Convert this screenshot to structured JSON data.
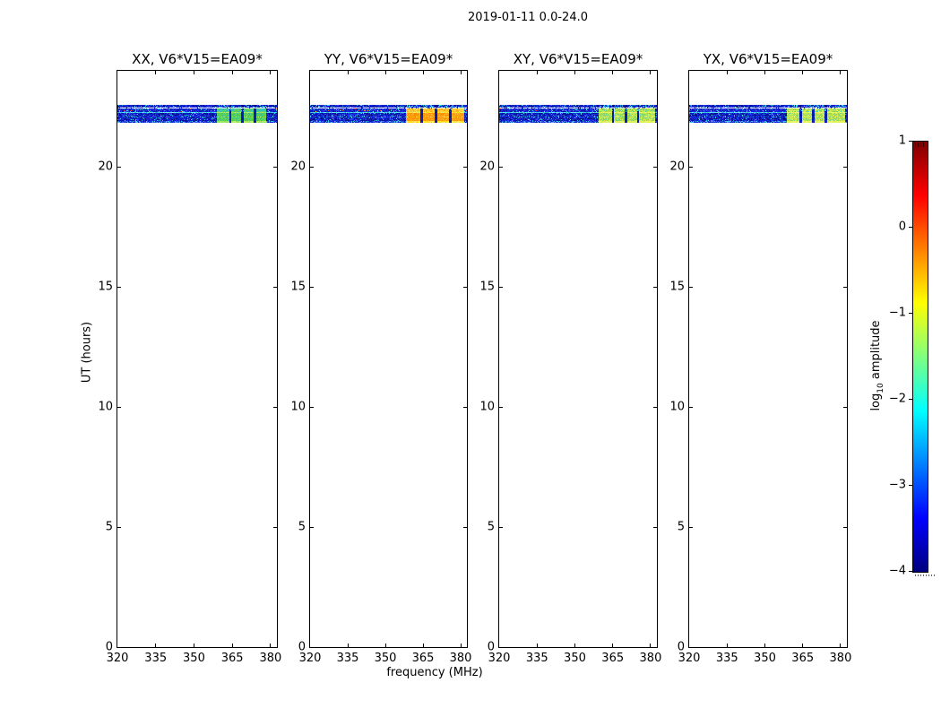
{
  "figure": {
    "title": "2019-01-11 0.0-24.0",
    "xlabel": "frequency (MHz)",
    "ylabel": "UT (hours)",
    "background": "#ffffff"
  },
  "axes": {
    "x_tick_labels": [
      "320",
      "335",
      "350",
      "365",
      "380"
    ],
    "y_tick_labels": [
      "0",
      "5",
      "10",
      "15",
      "20"
    ]
  },
  "colorbar": {
    "label_log": "log",
    "label_sub": "10",
    "label_rest": " amplitude",
    "ticks": [
      "1",
      "0",
      "−1",
      "−2",
      "−3",
      "−4"
    ],
    "tick_values": [
      1,
      0,
      -1,
      -2,
      -3,
      -4
    ],
    "gradient_top_to_bottom": [
      "#7f0000",
      "#ff0000",
      "#ffff00",
      "#00ffff",
      "#0000ff",
      "#00007f"
    ],
    "gradient_stops_pct": [
      0,
      12.5,
      37.5,
      62.5,
      87.5,
      100
    ]
  },
  "band_style": {
    "blue_palette": [
      "#0a18c4",
      "#1628da",
      "#2134e4",
      "#0b1cb0",
      "#3648ea",
      "#0d26d8",
      "#1b32e6",
      "#0914a8"
    ],
    "navy": "#031086",
    "cyan_fleck": [
      "#22c4e6",
      "#3adcf2",
      "#14a4dc",
      "#55e4f4"
    ],
    "warm_outliers": [
      "#e63226",
      "#ff8c00",
      "#ffd700",
      "#cc1616",
      "#ff5512"
    ],
    "bright_line": [
      "#36cbe8",
      "#54dff2",
      "#28b2dc",
      "#6ae8f6"
    ],
    "bottom_line": [
      "#2e6ae6",
      "#38cde8",
      "#2546de",
      "#49b8e8"
    ],
    "sep_palette": [
      "#001896",
      "#002ab4",
      "#0b1cc8"
    ]
  },
  "panels": [
    {
      "title": "XX, V6*V15=EA09*",
      "band": {
        "start": 0.625,
        "end": 0.935,
        "separators": [
          [
            0.7,
            0.716
          ],
          [
            0.776,
            0.792
          ],
          [
            0.852,
            0.868
          ]
        ],
        "top_palette": [
          "#38c4b0",
          "#49d08a",
          "#55cc66",
          "#2fb8d0",
          "#66d455"
        ],
        "block_palette": [
          "#4cc94e",
          "#5fd648",
          "#45c47c",
          "#72da4c",
          "#39bfa2",
          "#57cf60"
        ],
        "edge_palette": [
          "#a2e85c",
          "#8ce060",
          "#b9ee66"
        ]
      }
    },
    {
      "title": "YY, V6*V15=EA09*",
      "band": {
        "start": 0.612,
        "end": 0.984,
        "separators": [
          [
            0.705,
            0.72
          ],
          [
            0.795,
            0.81
          ],
          [
            0.885,
            0.9
          ]
        ],
        "top_palette": [
          "#ffd23a",
          "#ffc224",
          "#ffaa14",
          "#f4e04a"
        ],
        "block_palette": [
          "#ffa012",
          "#fb9208",
          "#ff8c00",
          "#ffb02a",
          "#f8a518"
        ],
        "edge_palette": [
          "#ffe34a",
          "#ffd900",
          "#f8ee66"
        ]
      }
    },
    {
      "title": "XY, V6*V15=EA09*",
      "band": {
        "start": 0.633,
        "end": 0.988,
        "separators": [
          [
            0.715,
            0.73
          ],
          [
            0.795,
            0.81
          ],
          [
            0.873,
            0.888
          ]
        ],
        "top_palette": [
          "#b8e84a",
          "#92dd52",
          "#cdee55",
          "#5ecf9e"
        ],
        "block_palette": [
          "#aade42",
          "#c3e74c",
          "#8cd65a",
          "#d6ee58",
          "#79d48a"
        ],
        "edge_palette": [
          "#e9f46a",
          "#dced50"
        ]
      }
    },
    {
      "title": "YX, V6*V15=EA09*",
      "band": {
        "start": 0.62,
        "end": 0.988,
        "separators": [
          [
            0.7,
            0.715
          ],
          [
            0.778,
            0.793
          ],
          [
            0.858,
            0.873
          ]
        ],
        "top_palette": [
          "#c4ea4c",
          "#9ade50",
          "#d8f058",
          "#62d0a2"
        ],
        "block_palette": [
          "#b2e046",
          "#cdeb50",
          "#90d85c",
          "#dff05e",
          "#7ed48e"
        ],
        "edge_palette": [
          "#ecf66c",
          "#e0ee54"
        ]
      }
    }
  ],
  "chart_data": {
    "type": "heatmap",
    "title": "2019-01-11 0.0-24.0",
    "xlabel": "frequency (MHz)",
    "ylabel": "UT (hours)",
    "xlim": [
      320,
      382.5
    ],
    "ylim": [
      0,
      24
    ],
    "x_ticks": [
      320,
      335,
      350,
      365,
      380
    ],
    "y_ticks": [
      0,
      5,
      10,
      15,
      20
    ],
    "grid": false,
    "colormap": "jet",
    "color_range_log10": [
      -4,
      1
    ],
    "colorbar_label": "log10 amplitude",
    "colorbar_ticks": [
      1,
      0,
      -1,
      -2,
      -3,
      -4
    ],
    "panels": [
      {
        "title": "XX, V6*V15=EA09*",
        "background": "no data (white) for UT 0-21.8 and 22.6-24",
        "features": [
          {
            "kind": "noise band",
            "ut_range": [
              21.8,
              22.6
            ],
            "freq_range_mhz": [
              320,
              382.5
            ],
            "log10_amplitude": [
              -4.0,
              -2.5
            ],
            "appearance": "dark blue speckle, thin cyan lines, sparse red/orange outlier pixels"
          },
          {
            "kind": "enhanced blocks",
            "ut_range": [
              21.9,
              22.45
            ],
            "freq_range_mhz": [
              359,
              378.5
            ],
            "log10_amplitude": [
              -2.0,
              -1.2
            ],
            "appearance": "green blocks separated by dark blue gaps"
          }
        ]
      },
      {
        "title": "YY, V6*V15=EA09*",
        "background": "no data (white) for UT 0-21.8 and 22.6-24",
        "features": [
          {
            "kind": "noise band",
            "ut_range": [
              21.8,
              22.6
            ],
            "freq_range_mhz": [
              320,
              382.5
            ],
            "log10_amplitude": [
              -4.0,
              -2.5
            ],
            "appearance": "dark blue speckle with thin cyan lines"
          },
          {
            "kind": "enhanced blocks",
            "ut_range": [
              21.9,
              22.45
            ],
            "freq_range_mhz": [
              358,
              381.5
            ],
            "log10_amplitude": [
              -0.9,
              -0.2
            ],
            "appearance": "orange blocks with yellow edges separated by dark blue gaps"
          }
        ]
      },
      {
        "title": "XY, V6*V15=EA09*",
        "background": "no data (white) for UT 0-21.8 and 22.6-24",
        "features": [
          {
            "kind": "noise band",
            "ut_range": [
              21.8,
              22.6
            ],
            "freq_range_mhz": [
              320,
              382.5
            ],
            "log10_amplitude": [
              -4.0,
              -2.5
            ],
            "appearance": "dark blue speckle, sparse warm outliers"
          },
          {
            "kind": "enhanced blocks",
            "ut_range": [
              21.9,
              22.45
            ],
            "freq_range_mhz": [
              359.5,
              382
            ],
            "log10_amplitude": [
              -1.5,
              -0.9
            ],
            "appearance": "yellow-green blocks separated by dark blue gaps"
          }
        ]
      },
      {
        "title": "YX, V6*V15=EA09*",
        "background": "no data (white) for UT 0-21.8 and 22.6-24",
        "features": [
          {
            "kind": "noise band",
            "ut_range": [
              21.8,
              22.6
            ],
            "freq_range_mhz": [
              320,
              382.5
            ],
            "log10_amplitude": [
              -4.0,
              -2.5
            ],
            "appearance": "dark blue speckle"
          },
          {
            "kind": "enhanced blocks",
            "ut_range": [
              21.9,
              22.45
            ],
            "freq_range_mhz": [
              359,
              382
            ],
            "log10_amplitude": [
              -1.5,
              -0.9
            ],
            "appearance": "yellow-green blocks separated by dark blue gaps"
          }
        ]
      }
    ]
  }
}
